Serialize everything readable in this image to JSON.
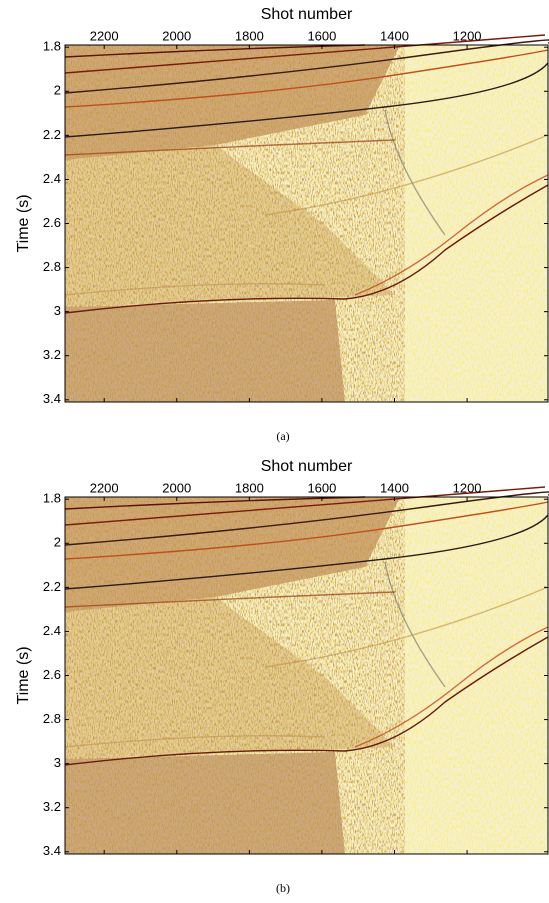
{
  "panels": [
    {
      "xlabel": "Shot number",
      "ylabel": "Time (s)",
      "caption": "(a)",
      "xlim": [
        2308,
        977
      ],
      "ylim": [
        1.79,
        3.41
      ],
      "xticks": [
        2200,
        2000,
        1800,
        1600,
        1400,
        1200
      ],
      "yticks": [
        1.8,
        2,
        2.2,
        2.4,
        2.6,
        2.8,
        3,
        3.2,
        3.4
      ]
    },
    {
      "xlabel": "Shot number",
      "ylabel": "Time (s)",
      "caption": "(b)",
      "xlim": [
        2308,
        977
      ],
      "ylim": [
        1.79,
        3.41
      ],
      "xticks": [
        2200,
        2000,
        1800,
        1600,
        1400,
        1200
      ],
      "yticks": [
        1.8,
        2,
        2.2,
        2.4,
        2.6,
        2.8,
        3,
        3.2,
        3.4
      ]
    }
  ]
}
